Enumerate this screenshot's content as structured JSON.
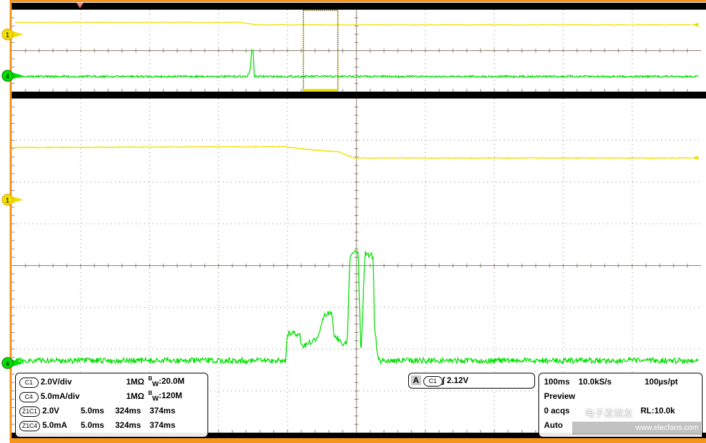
{
  "chart_data": [
    {
      "type": "line",
      "name_hint": "overview",
      "xlabel": "",
      "ylabel": "",
      "timebase": "100ms",
      "xlim_ms": [
        0,
        1000
      ],
      "zoom_window_ms": [
        324,
        374
      ],
      "series": [
        {
          "name": "1",
          "unit": "V",
          "color": "#f0e000",
          "x": [
            0,
            330,
            345,
            355,
            1000
          ],
          "y": [
            2.5,
            2.5,
            2.3,
            2.0,
            2.0
          ]
        },
        {
          "name": "4",
          "unit": "mA",
          "color": "#00e000",
          "x": [
            0,
            340,
            344,
            346,
            348,
            350,
            352,
            1000
          ],
          "y": [
            0,
            0,
            3,
            13,
            13,
            0,
            0,
            0
          ]
        }
      ]
    },
    {
      "type": "line",
      "name_hint": "zoom",
      "xlabel": "",
      "ylabel": "",
      "xlim_ms": [
        324,
        374
      ],
      "grid": true,
      "series": [
        {
          "name": "1",
          "unit": "V",
          "scale": "2.0V/div",
          "color": "#f0e000",
          "x": [
            324,
            344,
            346,
            348,
            349.2,
            374
          ],
          "y": [
            2.5,
            2.55,
            2.4,
            2.3,
            2.0,
            2.0
          ]
        },
        {
          "name": "4",
          "unit": "mA",
          "scale": "5.0mA/div",
          "color": "#00e000",
          "x": [
            324,
            343.8,
            343.9,
            344.8,
            345,
            346,
            346.3,
            346.6,
            347.2,
            347.3,
            347.9,
            348.3,
            348.5,
            348.8,
            349.1,
            349.3,
            349.6,
            349.8,
            350.2,
            350.3,
            350.6,
            374
          ],
          "y": [
            0.3,
            0.3,
            3.5,
            3.5,
            2.0,
            2.8,
            3.6,
            5.9,
            6.0,
            3.5,
            2.4,
            2.3,
            13.0,
            13.3,
            13.3,
            1.0,
            13.2,
            13.0,
            12.8,
            4.0,
            0.3,
            0.3
          ]
        }
      ]
    }
  ],
  "readouts": {
    "c1": {
      "label": "C1",
      "scale": "2.0V/div",
      "impedance": "1MΩ",
      "bw_b": "B",
      "bw_w": "W",
      "bw_val": ":20.0M"
    },
    "c4": {
      "label": "C4",
      "scale": "5.0mA/div",
      "impedance": "1MΩ",
      "bw_b": "B",
      "bw_w": "W",
      "bw_val": ":120M"
    },
    "z1c1": {
      "label": "Z1C1",
      "scale": "2.0V",
      "zoom": "5.0ms",
      "start": "324ms",
      "end": "374ms"
    },
    "z1c4": {
      "label": "Z1C4",
      "scale": "5.0mA",
      "zoom": "5.0ms",
      "start": "324ms",
      "end": "374ms"
    },
    "trigger": {
      "mode": "A",
      "source": "C1",
      "slope": "∫",
      "level": "2.12V"
    },
    "timebase": {
      "time_div": "100ms",
      "rate": "10.0kS/s",
      "per_pt": "100µs/pt",
      "state": "Preview",
      "acqs": "0 acqs",
      "rl": "RL:10.0k",
      "trig_mode": "Auto"
    }
  },
  "markers": {
    "ch1": "1",
    "ch4": "4"
  },
  "watermark": {
    "cn": "电子发烧友",
    "url": "www.elecfans.com"
  },
  "colors": {
    "frame": "#f7941d",
    "grid": "#8b7d6b",
    "ch1": "#f0e000",
    "ch4": "#00e000",
    "trigger": "#f08070"
  }
}
